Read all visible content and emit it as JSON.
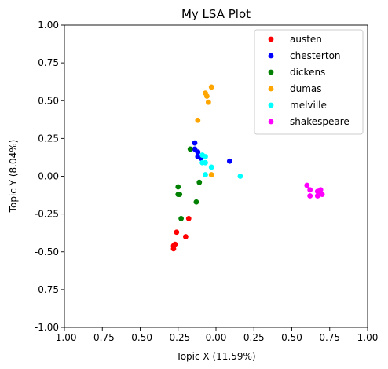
{
  "chart_data": {
    "type": "scatter",
    "title": "My LSA Plot",
    "xlabel": "Topic X (11.59%)",
    "ylabel": "Topic Y (8.04%)",
    "xlim": [
      -1.0,
      1.0
    ],
    "ylim": [
      -1.0,
      1.0
    ],
    "x_ticks": [
      "-1.00",
      "-0.75",
      "-0.50",
      "-0.25",
      "0.00",
      "0.25",
      "0.50",
      "0.75",
      "1.00"
    ],
    "y_ticks": [
      "-1.00",
      "-0.75",
      "-0.50",
      "-0.25",
      "0.00",
      "0.25",
      "0.50",
      "0.75",
      "1.00"
    ],
    "grid": false,
    "legend_position": "top-right",
    "series": [
      {
        "name": "austen",
        "color": "#ff0000",
        "points": [
          [
            -0.28,
            -0.48
          ],
          [
            -0.28,
            -0.46
          ],
          [
            -0.27,
            -0.45
          ],
          [
            -0.26,
            -0.37
          ],
          [
            -0.2,
            -0.4
          ],
          [
            -0.18,
            -0.28
          ]
        ]
      },
      {
        "name": "chesterton",
        "color": "#0000ff",
        "points": [
          [
            -0.14,
            0.22
          ],
          [
            -0.14,
            0.18
          ],
          [
            -0.12,
            0.16
          ],
          [
            -0.12,
            0.13
          ],
          [
            -0.1,
            0.12
          ],
          [
            0.09,
            0.1
          ]
        ]
      },
      {
        "name": "dickens",
        "color": "#008000",
        "points": [
          [
            -0.17,
            0.18
          ],
          [
            -0.11,
            -0.04
          ],
          [
            -0.25,
            -0.07
          ],
          [
            -0.25,
            -0.12
          ],
          [
            -0.24,
            -0.12
          ],
          [
            -0.13,
            -0.17
          ],
          [
            -0.23,
            -0.28
          ]
        ]
      },
      {
        "name": "dumas",
        "color": "#ffa500",
        "points": [
          [
            -0.03,
            0.59
          ],
          [
            -0.07,
            0.55
          ],
          [
            -0.06,
            0.53
          ],
          [
            -0.05,
            0.49
          ],
          [
            -0.12,
            0.37
          ],
          [
            -0.03,
            0.01
          ]
        ]
      },
      {
        "name": "melville",
        "color": "#00ffff",
        "points": [
          [
            -0.09,
            0.14
          ],
          [
            -0.07,
            0.13
          ],
          [
            -0.09,
            0.09
          ],
          [
            -0.07,
            0.09
          ],
          [
            -0.03,
            0.06
          ],
          [
            -0.07,
            0.01
          ],
          [
            0.16,
            0.0
          ]
        ]
      },
      {
        "name": "shakespeare",
        "color": "#ff00ff",
        "points": [
          [
            0.6,
            -0.06
          ],
          [
            0.62,
            -0.09
          ],
          [
            0.62,
            -0.13
          ],
          [
            0.67,
            -0.1
          ],
          [
            0.69,
            -0.09
          ],
          [
            0.7,
            -0.12
          ],
          [
            0.67,
            -0.13
          ],
          [
            0.68,
            -0.11
          ]
        ]
      }
    ]
  }
}
